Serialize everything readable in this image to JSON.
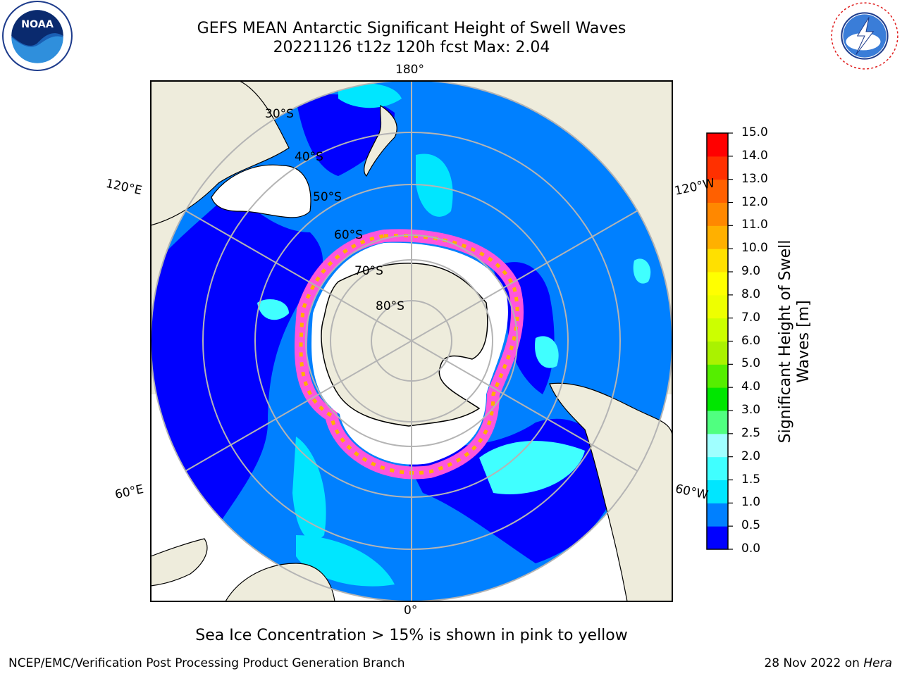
{
  "title": {
    "line1": "GEFS MEAN Antarctic Significant Height of Swell Waves",
    "line2": "20221126 t12z 120h fcst   Max: 2.04"
  },
  "map": {
    "longitude_labels": {
      "top": "180°",
      "bottom": "0°",
      "upper_left": "120°E",
      "upper_right": "120°W",
      "lower_left": "60°E",
      "lower_right": "60°W"
    },
    "latitude_labels": [
      "30°S",
      "40°S",
      "50°S",
      "60°S",
      "70°S",
      "80°S"
    ]
  },
  "colorbar": {
    "label": "Significant Height of Swell Waves [m]",
    "ticks": [
      "0.0",
      "0.5",
      "1.0",
      "1.5",
      "2.0",
      "2.5",
      "3.0",
      "4.0",
      "5.0",
      "6.0",
      "7.0",
      "8.0",
      "9.0",
      "10.0",
      "11.0",
      "12.0",
      "13.0",
      "14.0",
      "15.0"
    ],
    "colors": [
      "#0000ff",
      "#0080ff",
      "#00e6ff",
      "#40ffff",
      "#a0ffff",
      "#50ff80",
      "#00e600",
      "#55ee00",
      "#aaf200",
      "#ccff00",
      "#eeff00",
      "#ffff00",
      "#ffe000",
      "#ffb000",
      "#ff8800",
      "#ff6000",
      "#ff3000",
      "#ff0000"
    ]
  },
  "note": "Sea Ice Concentration > 15% is shown in pink to yellow",
  "footer": {
    "left": "NCEP/EMC/Verification Post Processing Product Generation Branch",
    "right_prefix": "28 Nov 2022 on ",
    "right_host": "Hera"
  },
  "logos": {
    "left": "NOAA",
    "right": "NATIONAL WEATHER SERVICE"
  }
}
